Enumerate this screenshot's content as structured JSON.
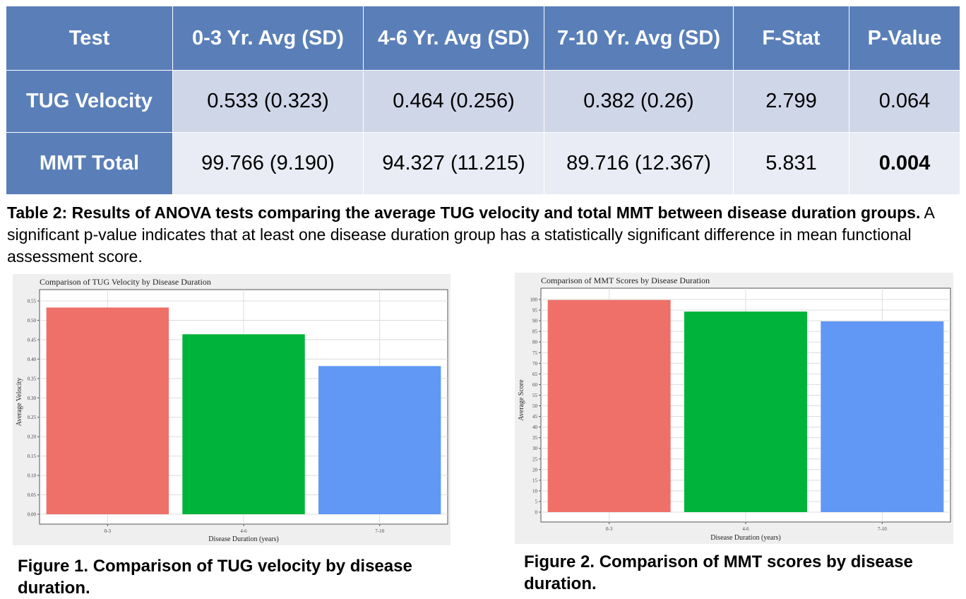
{
  "table": {
    "headers": [
      "Test",
      "0-3 Yr. Avg (SD)",
      "4-6 Yr. Avg (SD)",
      "7-10 Yr. Avg (SD)",
      "F-Stat",
      "P-Value"
    ],
    "rows": [
      [
        "TUG Velocity",
        "0.533 (0.323)",
        "0.464 (0.256)",
        "0.382 (0.26)",
        "2.799",
        "0.064"
      ],
      [
        "MMT Total",
        "99.766 (9.190)",
        "94.327 (11.215)",
        "89.716 (12.367)",
        "5.831",
        "0.004"
      ]
    ]
  },
  "caption": {
    "bold": "Table 2: Results of ANOVA tests comparing the average TUG velocity and total MMT between disease duration groups.",
    "text": " A significant p-value indicates that at least one disease duration group has a statistically significant difference in mean functional assessment score."
  },
  "figures": {
    "fig1_caption": "Figure 1. Comparison of TUG velocity by disease duration.",
    "fig2_caption": "Figure 2. Comparison of MMT scores by disease duration."
  },
  "colors": {
    "header_bg": "#5a7fb8",
    "bar_0_3": "#ef7068",
    "bar_4_6": "#00b33a",
    "bar_7_10": "#6198f5"
  },
  "chart_data": [
    {
      "type": "bar",
      "title": "Comparison of TUG Velocity by Disease Duration",
      "xlabel": "Disease Duration (years)",
      "ylabel": "Average Velocity",
      "categories": [
        "0-3",
        "4-6",
        "7-10"
      ],
      "values": [
        0.533,
        0.464,
        0.382
      ],
      "ylim": [
        0,
        0.55
      ],
      "yticks": [
        "0.00",
        "0.05",
        "0.10",
        "0.15",
        "0.20",
        "0.25",
        "0.30",
        "0.35",
        "0.40",
        "0.45",
        "0.50",
        "0.55"
      ],
      "grid": true,
      "legend": "none"
    },
    {
      "type": "bar",
      "title": "Comparison of MMT Scores by Disease Duration",
      "xlabel": "Disease Duration (years)",
      "ylabel": "Average Score",
      "categories": [
        "0-3",
        "4-6",
        "7-10"
      ],
      "values": [
        99.766,
        94.327,
        89.716
      ],
      "ylim": [
        0,
        100
      ],
      "yticks": [
        "0",
        "5",
        "10",
        "15",
        "20",
        "25",
        "30",
        "35",
        "40",
        "45",
        "50",
        "55",
        "60",
        "65",
        "70",
        "75",
        "80",
        "85",
        "90",
        "95",
        "100"
      ],
      "grid": true,
      "legend": "none"
    }
  ]
}
